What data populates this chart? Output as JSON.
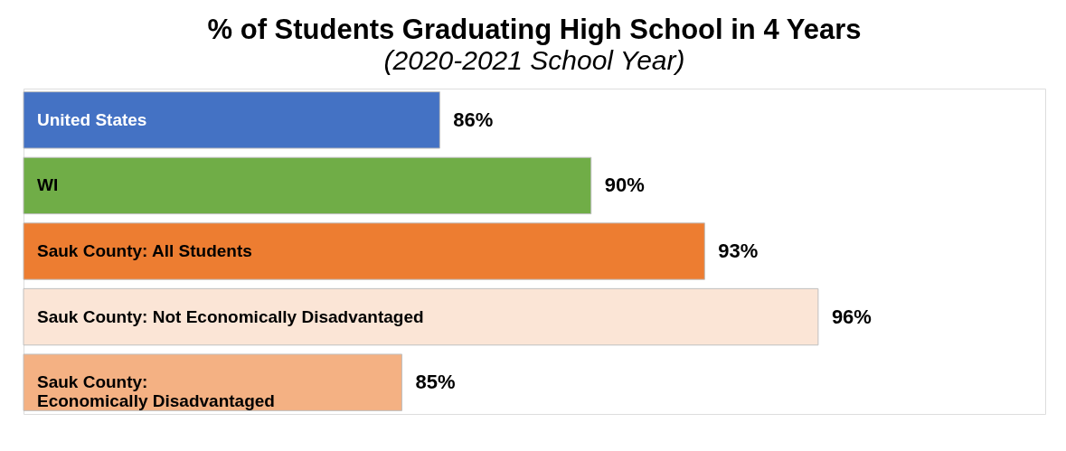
{
  "chart_data": {
    "type": "bar",
    "orientation": "horizontal",
    "title": "% of Students Graduating High School in 4 Years",
    "subtitle": "(2020-2021 School Year)",
    "categories": [
      "United States",
      "WI",
      "Sauk County: All Students",
      "Sauk County: Not Economically Disadvantaged",
      "Sauk County:\nEconomically Disadvantaged"
    ],
    "values": [
      86,
      90,
      93,
      96,
      85
    ],
    "value_labels": [
      "86%",
      "90%",
      "93%",
      "96%",
      "85%"
    ],
    "colors": [
      "#4472c4",
      "#70ad47",
      "#ed7d31",
      "#fbe5d6",
      "#f4b183"
    ],
    "xlim": [
      75,
      102
    ],
    "grid": false
  }
}
